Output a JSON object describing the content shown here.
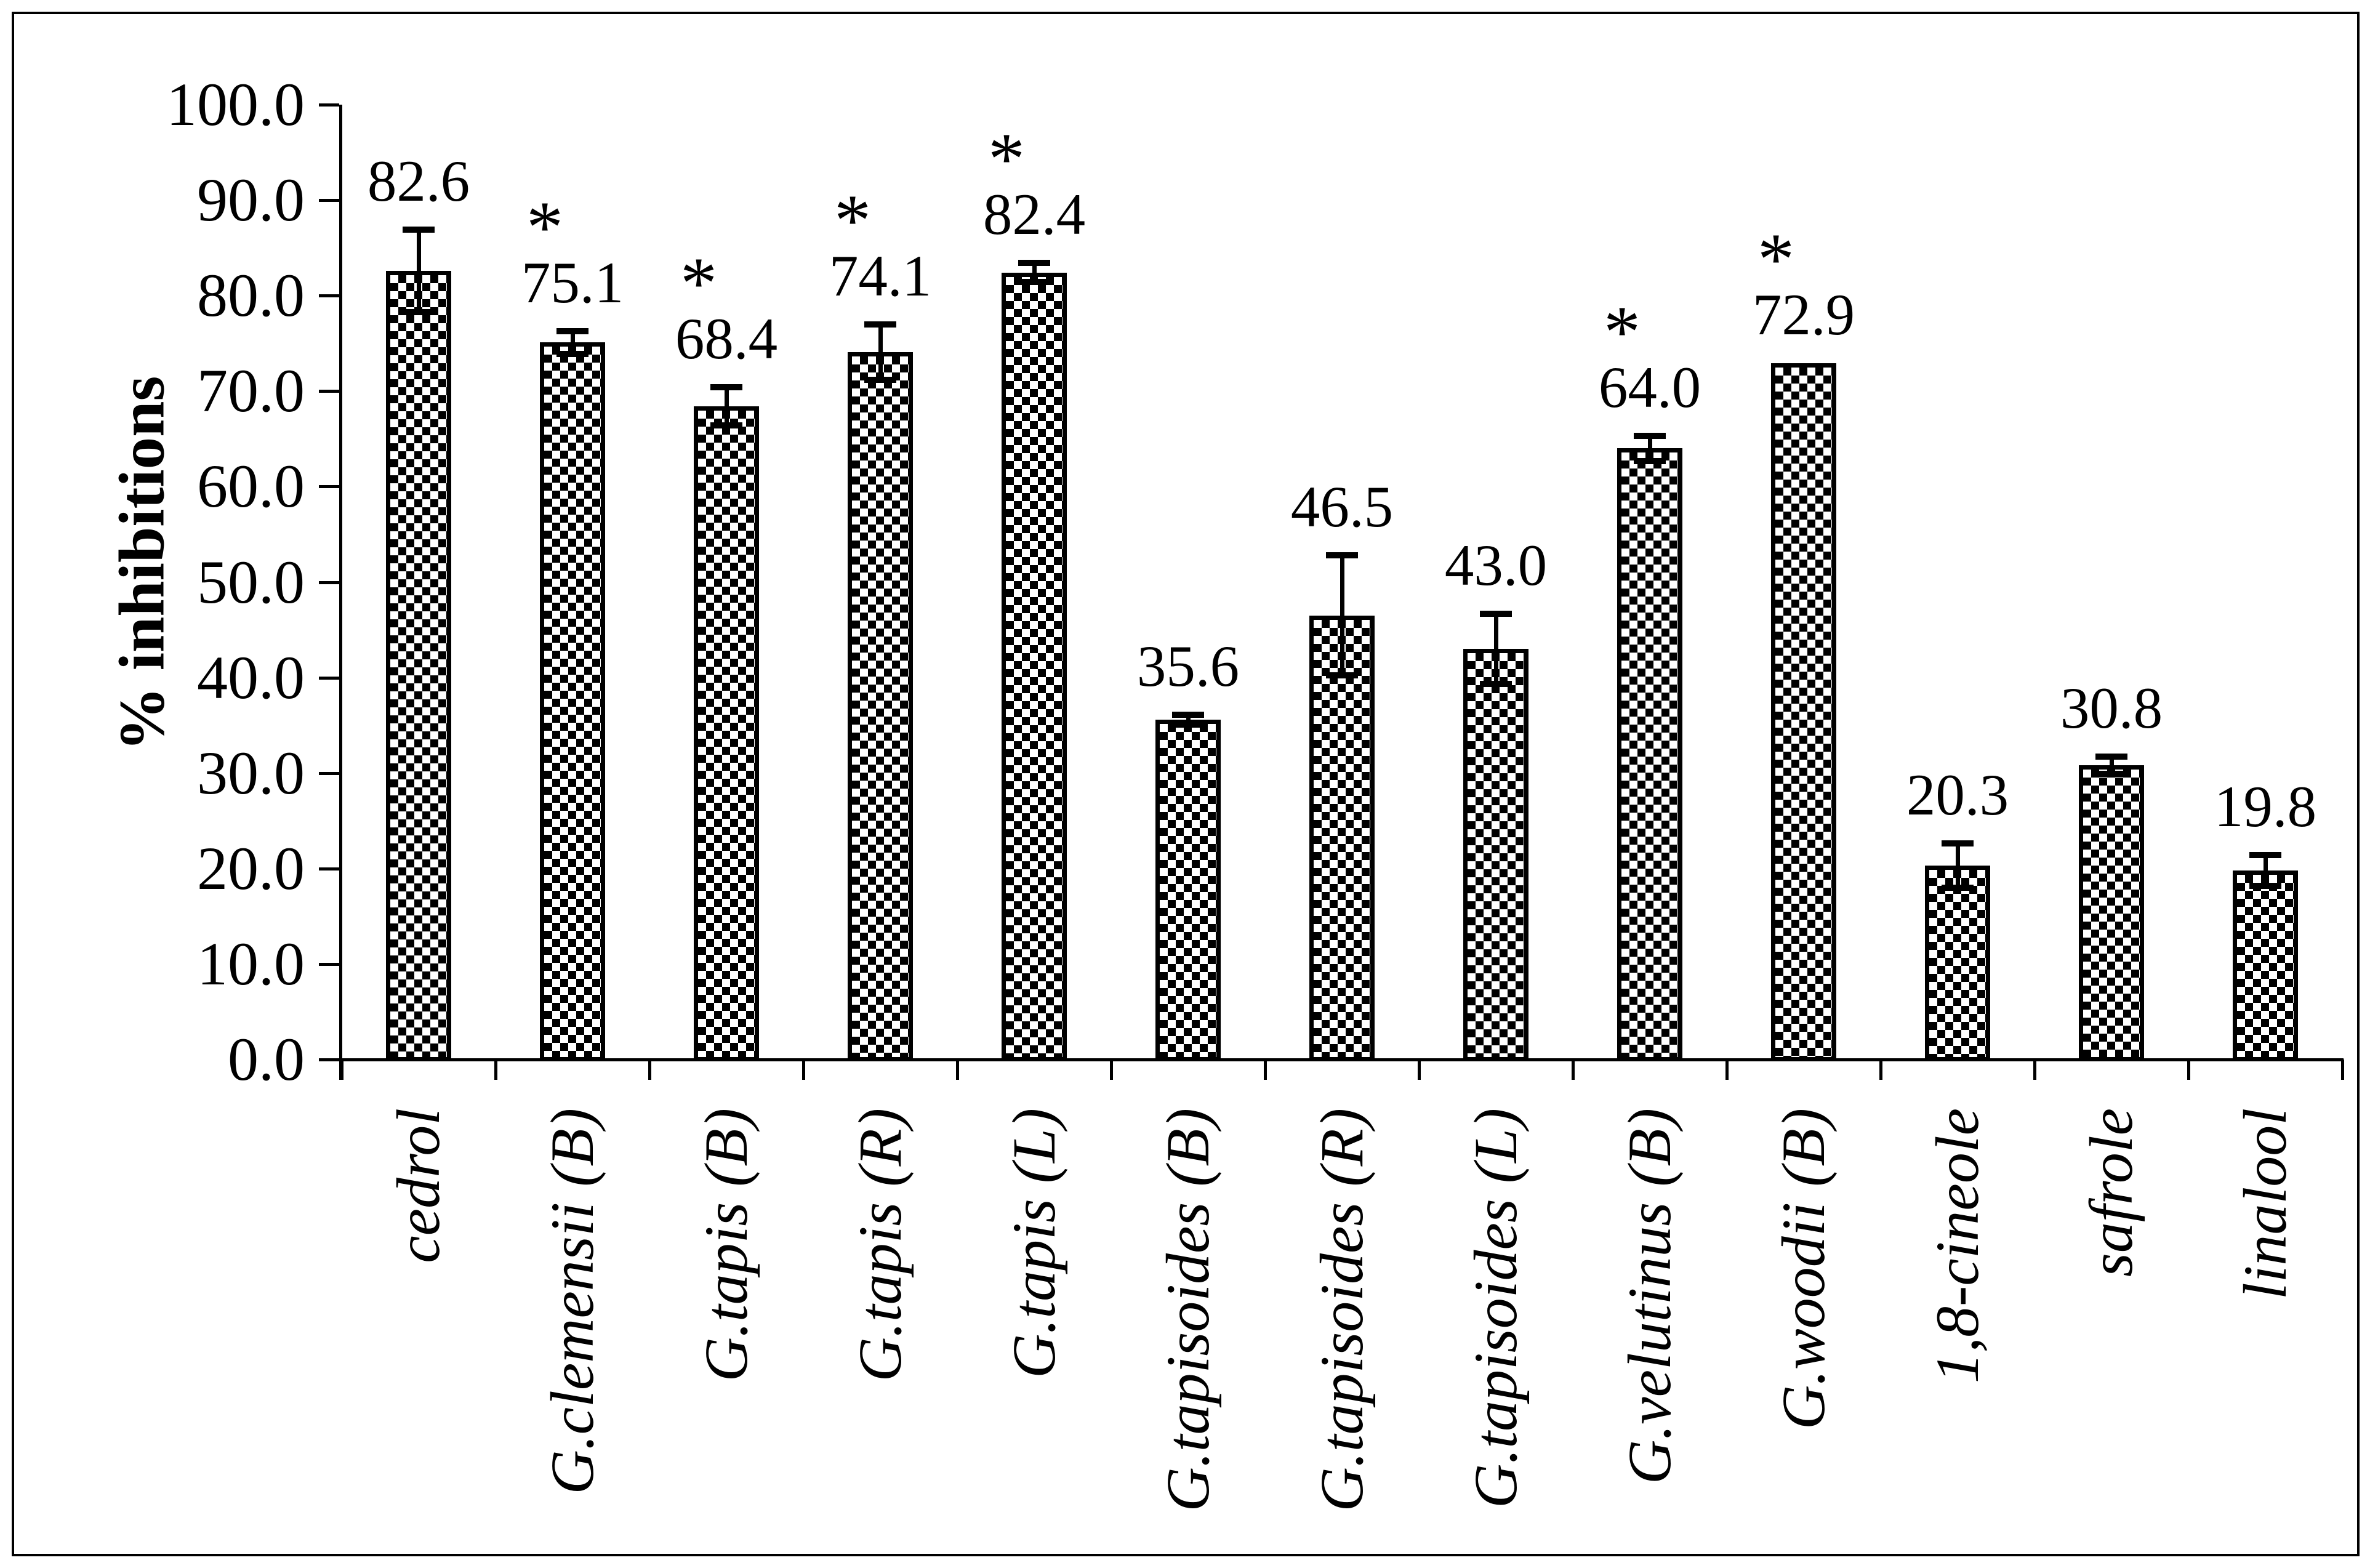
{
  "figure": {
    "background_color": "#ffffff",
    "border_color": "#000000",
    "text_color": "#000000"
  },
  "chart_data": {
    "type": "bar",
    "title": "",
    "xlabel": "",
    "ylabel": "% inhibitions",
    "ylim": [
      0,
      100
    ],
    "grid": false,
    "legend_position": "none",
    "bar_pattern": "black-white-checkerboard",
    "significance_marker": "*",
    "yticks": {
      "values": [
        0,
        10,
        20,
        30,
        40,
        50,
        60,
        70,
        80,
        90,
        100
      ],
      "labels": [
        "0.0",
        "10.0",
        "20.0",
        "30.0",
        "40.0",
        "50.0",
        "60.0",
        "70.0",
        "80.0",
        "90.0",
        "100.0"
      ]
    },
    "categories": [
      "cedrol",
      "G.clemensii (B)",
      "G.tapis (B)",
      "G.tapis (R)",
      "G.tapis (L)",
      "G.tapisoides (B)",
      "G.tapisoides (R)",
      "G.tapisoides (L)",
      "G.velutinus (B)",
      "G.woodii (B)",
      "1,8-cineole",
      "safrole",
      "linalool"
    ],
    "series": [
      {
        "name": "% inhibitions",
        "values": [
          82.6,
          75.1,
          68.4,
          74.1,
          82.4,
          35.6,
          46.5,
          43.0,
          64.0,
          72.9,
          20.3,
          30.8,
          19.8
        ],
        "errors": [
          4.3,
          1.2,
          2.0,
          2.9,
          1.0,
          0.5,
          6.3,
          3.7,
          1.3,
          0,
          2.3,
          0.9,
          1.6
        ],
        "significant": [
          false,
          true,
          true,
          true,
          true,
          false,
          false,
          false,
          true,
          true,
          false,
          false,
          false
        ]
      }
    ],
    "value_labels": [
      "82.6",
      "75.1",
      "68.4",
      "74.1",
      "82.4",
      "35.6",
      "46.5",
      "43.0",
      "64.0",
      "72.9",
      "20.3",
      "30.8",
      "19.8"
    ]
  }
}
